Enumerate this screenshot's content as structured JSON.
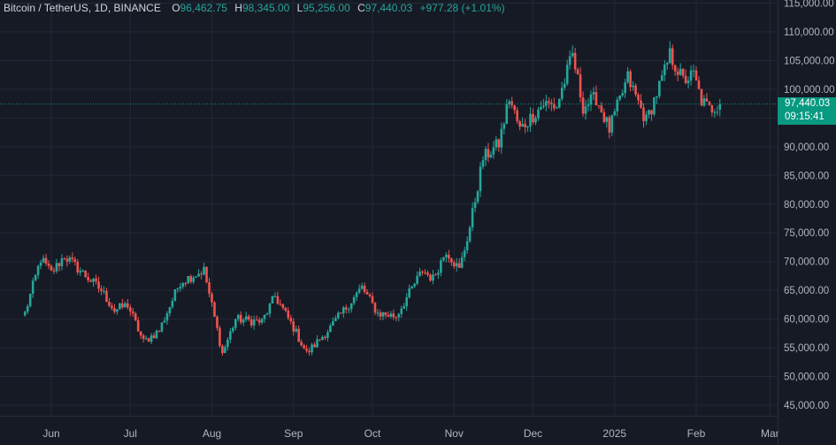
{
  "header": {
    "symbol": "Bitcoin / TetherUS, 1D, BINANCE",
    "o_label": "O",
    "o_value": "96,462.75",
    "h_label": "H",
    "h_value": "98,345.00",
    "l_label": "L",
    "l_value": "95,256.00",
    "c_label": "C",
    "c_value": "97,440.03",
    "change": "+977.28 (+1.01%)"
  },
  "colors": {
    "up": "#26a69a",
    "down": "#ef5350",
    "background": "#161a25",
    "grid": "#232837",
    "tag": "#089981"
  },
  "price_tag": {
    "price": "97,440.03",
    "countdown": "09:15:41"
  },
  "chart_data": {
    "type": "candlestick",
    "y_axis_ticks": [
      "115,000.00",
      "110,000.00",
      "105,000.00",
      "100,000.00",
      "95,000.00",
      "90,000.00",
      "85,000.00",
      "80,000.00",
      "75,000.00",
      "70,000.00",
      "65,000.00",
      "60,000.00",
      "55,000.00",
      "50,000.00",
      "45,000.00"
    ],
    "x_axis_ticks": [
      "Jun",
      "Jul",
      "Aug",
      "Sep",
      "Oct",
      "Nov",
      "Dec",
      "2025",
      "Feb",
      "Mar"
    ],
    "ylim": [
      42000,
      116000
    ],
    "last_price": 97440.03,
    "grid": true,
    "waypoints": [
      [
        "2024-05-22",
        61000
      ],
      [
        "2024-05-28",
        70500
      ],
      [
        "2024-06-01",
        68000
      ],
      [
        "2024-06-06",
        71000
      ],
      [
        "2024-06-13",
        68000
      ],
      [
        "2024-06-20",
        65000
      ],
      [
        "2024-06-25",
        61500
      ],
      [
        "2024-06-30",
        62500
      ],
      [
        "2024-07-06",
        56000
      ],
      [
        "2024-07-12",
        58000
      ],
      [
        "2024-07-20",
        66500
      ],
      [
        "2024-07-29",
        68500
      ],
      [
        "2024-08-05",
        54000
      ],
      [
        "2024-08-10",
        60000
      ],
      [
        "2024-08-20",
        59500
      ],
      [
        "2024-08-25",
        64000
      ],
      [
        "2024-09-01",
        58500
      ],
      [
        "2024-09-06",
        54000
      ],
      [
        "2024-09-15",
        58500
      ],
      [
        "2024-09-27",
        65500
      ],
      [
        "2024-10-03",
        61000
      ],
      [
        "2024-10-10",
        60500
      ],
      [
        "2024-10-20",
        68500
      ],
      [
        "2024-10-24",
        67000
      ],
      [
        "2024-10-29",
        72000
      ],
      [
        "2024-11-03",
        68500
      ],
      [
        "2024-11-07",
        76000
      ],
      [
        "2024-11-12",
        88000
      ],
      [
        "2024-11-18",
        90500
      ],
      [
        "2024-11-22",
        98500
      ],
      [
        "2024-11-26",
        93000
      ],
      [
        "2024-12-05",
        97500
      ],
      [
        "2024-12-10",
        97000
      ],
      [
        "2024-12-16",
        106000
      ],
      [
        "2024-12-20",
        97000
      ],
      [
        "2024-12-25",
        98500
      ],
      [
        "2024-12-30",
        93000
      ],
      [
        "2025-01-06",
        102000
      ],
      [
        "2025-01-13",
        94500
      ],
      [
        "2025-01-20",
        103000
      ],
      [
        "2025-01-22",
        106000
      ],
      [
        "2025-01-27",
        101500
      ],
      [
        "2025-01-31",
        102500
      ],
      [
        "2025-02-03",
        98000
      ],
      [
        "2025-02-06",
        96500
      ],
      [
        "2025-02-10",
        97440
      ]
    ]
  }
}
